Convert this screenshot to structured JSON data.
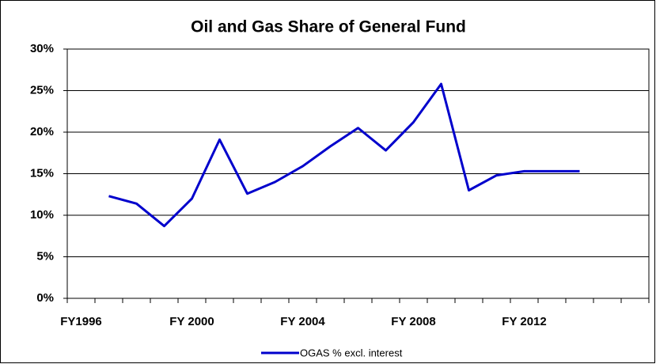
{
  "chart_data": {
    "type": "line",
    "title": "Oil and Gas Share of General Fund",
    "categories": [
      "FY1996",
      null,
      null,
      null,
      "FY 2000",
      null,
      null,
      null,
      "FY 2004",
      null,
      null,
      null,
      "FY 2008",
      null,
      null,
      null,
      "FY 2012",
      null,
      null,
      null,
      null
    ],
    "series": [
      {
        "name": "OGAS % excl. interest",
        "color": "#0000cc",
        "values": [
          null,
          12.3,
          11.4,
          8.7,
          12.0,
          19.1,
          12.6,
          14.0,
          15.9,
          18.3,
          20.5,
          17.8,
          21.2,
          25.8,
          13.0,
          14.8,
          15.3,
          15.3,
          15.3,
          null,
          null
        ]
      }
    ],
    "ylim": [
      0,
      30
    ],
    "yticks": [
      {
        "value": 0,
        "label": "0%"
      },
      {
        "value": 5,
        "label": "5%"
      },
      {
        "value": 10,
        "label": "10%"
      },
      {
        "value": 15,
        "label": "15%"
      },
      {
        "value": 20,
        "label": "20%"
      },
      {
        "value": 25,
        "label": "25%"
      },
      {
        "value": 30,
        "label": "30%"
      }
    ],
    "grid": true,
    "legend": "bottom"
  }
}
